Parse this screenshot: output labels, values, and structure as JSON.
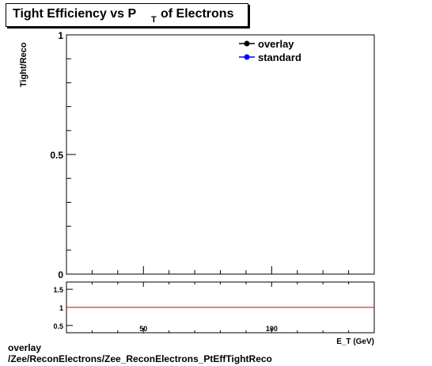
{
  "title": {
    "main": "Tight Efficiency vs P",
    "sub": "T",
    "tail": "of Electrons"
  },
  "caption": {
    "line1": "overlay",
    "line2": "/Zee/ReconElectrons/Zee_ReconElectrons_PtEffTightReco"
  },
  "colors": {
    "overlay": "#000000",
    "standard": "#0000ff",
    "ratio_line": "#cc0000"
  },
  "chart_data": [
    {
      "type": "scatter",
      "ylabel": "Tight/Reco",
      "xlabel": "E_T (GeV)",
      "xlim": [
        20,
        140
      ],
      "ylim": [
        0,
        1
      ],
      "yticks": [
        "0",
        "0.5",
        "1"
      ],
      "legend": {
        "placement": "top-right",
        "entries": [
          "overlay",
          "standard"
        ]
      },
      "series": [
        {
          "name": "overlay",
          "values": []
        },
        {
          "name": "standard",
          "values": []
        }
      ]
    },
    {
      "type": "line",
      "xlim": [
        20,
        140
      ],
      "ylim": [
        0.3,
        1.7
      ],
      "xticks": [
        "50",
        "100"
      ],
      "yticks": [
        "0.5",
        "1",
        "1.5"
      ],
      "reference_line": 1
    }
  ]
}
